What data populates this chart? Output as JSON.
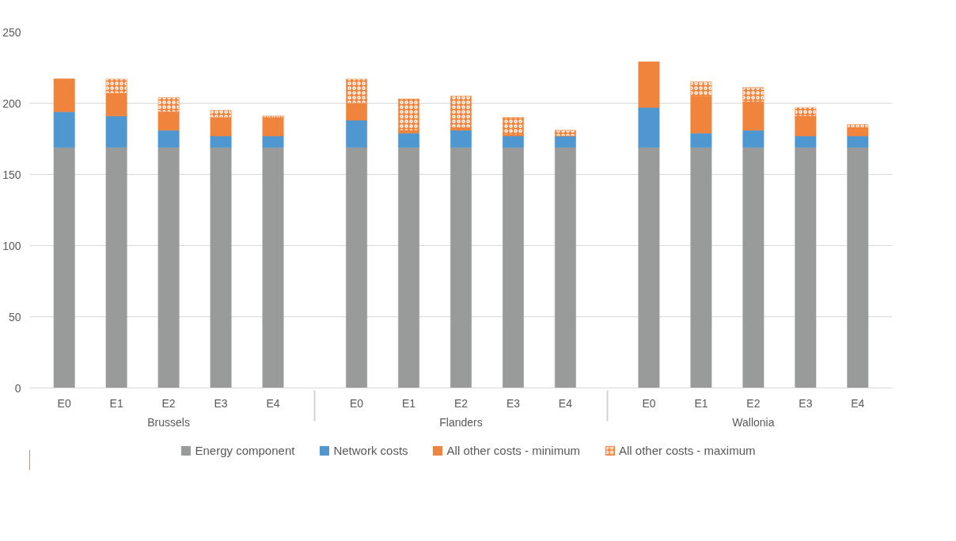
{
  "chart_data": {
    "type": "bar",
    "stacked": true,
    "categories": [
      "E0",
      "E1",
      "E2",
      "E3",
      "E4",
      "E0",
      "E1",
      "E2",
      "E3",
      "E4",
      "E0",
      "E1",
      "E2",
      "E3",
      "E4"
    ],
    "annotations": [
      "Brussels",
      "Flanders",
      "Wallonia"
    ],
    "series": [
      {
        "name": "Energy component",
        "color": "#999b9b",
        "values": [
          169,
          169,
          169,
          169,
          169,
          169,
          169,
          169,
          169,
          169,
          169,
          169,
          169,
          169,
          169
        ]
      },
      {
        "name": "Network costs",
        "color": "#4f97d1",
        "values": [
          25,
          22,
          12,
          8,
          8,
          19,
          10,
          12,
          8,
          8,
          28,
          10,
          12,
          8,
          8
        ]
      },
      {
        "name": "All other costs - minimum",
        "color": "#f0843c",
        "values": [
          23,
          16,
          13,
          13,
          13,
          12,
          2,
          2,
          1,
          0,
          32,
          26,
          20,
          14,
          6
        ]
      },
      {
        "name": "All other costs - maximum",
        "color": "#f0843c",
        "values": [
          0,
          10,
          10,
          5,
          1,
          17,
          22,
          22,
          12,
          4,
          0,
          10,
          10,
          6,
          2
        ]
      }
    ],
    "ylim": [
      0,
      250
    ],
    "yticks": [
      0,
      50,
      100,
      150,
      200,
      250
    ],
    "grid": "y",
    "legend": "bottom"
  }
}
